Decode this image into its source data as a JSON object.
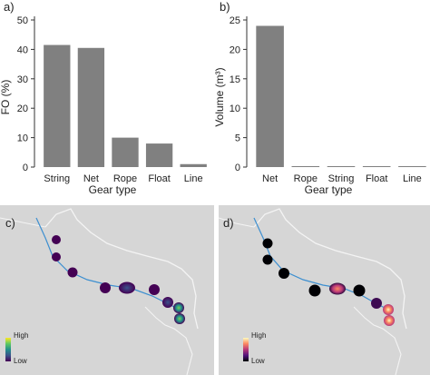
{
  "chart_data": [
    {
      "panel": "a)",
      "type": "bar",
      "categories": [
        "String",
        "Net",
        "Rope",
        "Float",
        "Line"
      ],
      "values": [
        41.5,
        40.5,
        10,
        8,
        1
      ],
      "xlabel": "Gear type",
      "ylabel": "FO (%)",
      "ylim": [
        0,
        50
      ],
      "yticks": [
        0,
        10,
        20,
        30,
        40,
        50
      ],
      "bar_color": "#808080"
    },
    {
      "panel": "b)",
      "type": "bar",
      "categories": [
        "Net",
        "Rope",
        "String",
        "Float",
        "Line"
      ],
      "values": [
        24,
        0.1,
        0.05,
        0.05,
        0.05
      ],
      "xlabel": "Gear type",
      "ylabel": "Volume (m³)",
      "ylim": [
        0,
        25
      ],
      "yticks": [
        0,
        5,
        10,
        15,
        20,
        25
      ],
      "bar_color": "#808080"
    }
  ],
  "maps": [
    {
      "panel": "c)",
      "legend": {
        "high_label": "High",
        "low_label": "Low",
        "scale": "viridis"
      },
      "scale_colors": [
        "#440154",
        "#3b528b",
        "#21918c",
        "#5ec962",
        "#fde725"
      ]
    },
    {
      "panel": "d)",
      "legend": {
        "high_label": "High",
        "low_label": "Low",
        "scale": "magma"
      },
      "scale_colors": [
        "#000004",
        "#51127c",
        "#b73779",
        "#fc8961",
        "#fcfdbf"
      ]
    }
  ]
}
